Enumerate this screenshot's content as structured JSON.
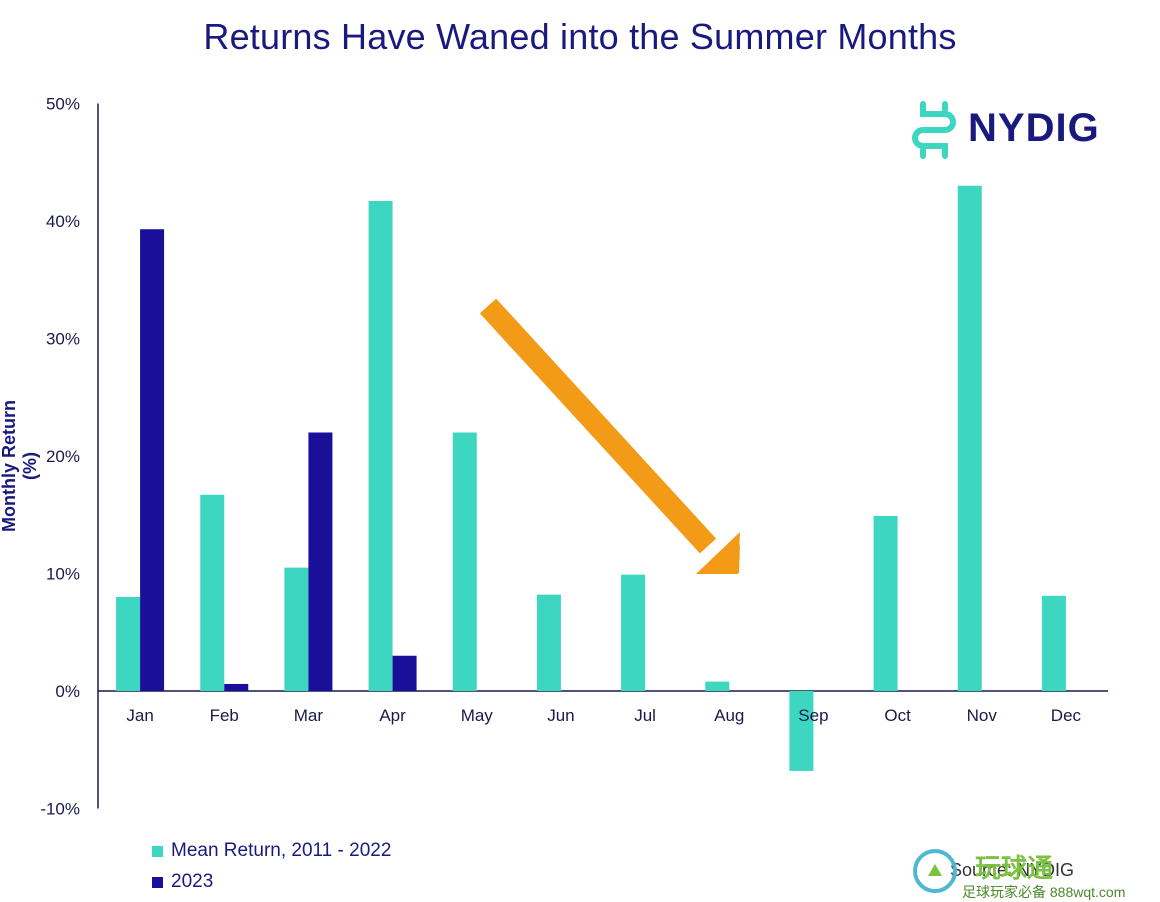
{
  "title": "Returns Have Waned into the Summer Months",
  "logo_text": "NYDIG",
  "source_text": "Source: NYDIG",
  "watermark": {
    "main": "玩球通",
    "sub": "足球玩家必备 888wqt.com"
  },
  "colors": {
    "mean": "#3dd6c0",
    "y2023": "#1a0f99",
    "arrow": "#f39a17",
    "title": "#1a1a7e"
  },
  "chart_data": {
    "type": "bar",
    "categories": [
      "Jan",
      "Feb",
      "Mar",
      "Apr",
      "May",
      "Jun",
      "Jul",
      "Aug",
      "Sep",
      "Oct",
      "Nov",
      "Dec"
    ],
    "series": [
      {
        "name": "Mean Return, 2011 - 2022",
        "values": [
          8.0,
          16.7,
          10.5,
          41.7,
          22.0,
          8.2,
          9.9,
          0.8,
          -6.8,
          14.9,
          43.0,
          8.1
        ]
      },
      {
        "name": "2023",
        "values": [
          39.3,
          0.6,
          22.0,
          3.0,
          null,
          null,
          null,
          null,
          null,
          null,
          null,
          null
        ]
      }
    ],
    "ylabel": "Monthly Return (%)",
    "ylim": [
      -10,
      50
    ],
    "yticks": [
      "-10%",
      "0%",
      "10%",
      "20%",
      "30%",
      "40%",
      "50%"
    ],
    "legend_position": "bottom-left",
    "grid": false
  }
}
